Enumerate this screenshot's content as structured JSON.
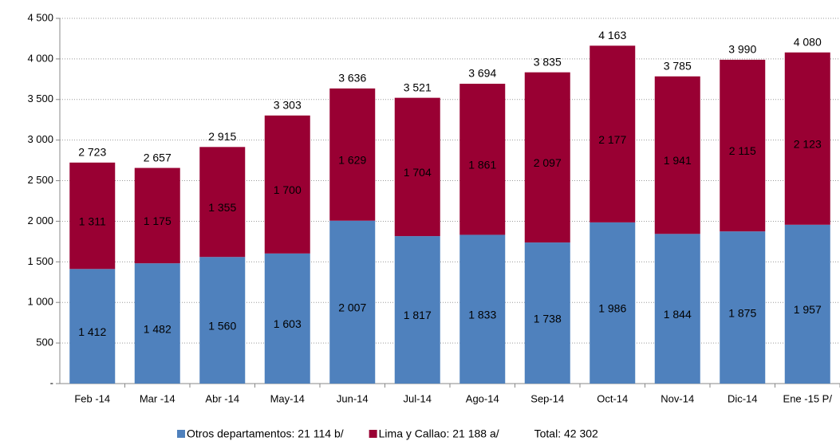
{
  "chart_data": {
    "type": "stacked_bar",
    "categories": [
      "Feb -14",
      "Mar -14",
      "Abr -14",
      "May-14",
      "Jun-14",
      "Jul-14",
      "Ago-14",
      "Sep-14",
      "Oct-14",
      "Nov-14",
      "Dic-14",
      "Ene -15 P/"
    ],
    "series": [
      {
        "name": "Otros departamentos: 21 114 b/",
        "color": "#4f81bd",
        "values": [
          1412,
          1482,
          1560,
          1603,
          2007,
          1817,
          1833,
          1738,
          1986,
          1844,
          1875,
          1957
        ],
        "value_labels": [
          "1 412",
          "1 482",
          "1 560",
          "1 603",
          "2 007",
          "1 817",
          "1 833",
          "1 738",
          "1 986",
          "1 844",
          "1 875",
          "1 957"
        ]
      },
      {
        "name": "Lima y Callao: 21 188 a/",
        "color": "#990033",
        "values": [
          1311,
          1175,
          1355,
          1700,
          1629,
          1704,
          1861,
          2097,
          2177,
          1941,
          2115,
          2123
        ],
        "value_labels": [
          "1 311",
          "1 175",
          "1 355",
          "1 700",
          "1 629",
          "1 704",
          "1 861",
          "2 097",
          "2 177",
          "1 941",
          "2 115",
          "2 123"
        ]
      }
    ],
    "totals": [
      2723,
      2657,
      2915,
      3303,
      3636,
      3521,
      3694,
      3835,
      4163,
      3785,
      3990,
      4080
    ],
    "total_labels": [
      "2 723",
      "2 657",
      "2 915",
      "3 303",
      "3 636",
      "3 521",
      "3 694",
      "3 835",
      "4 163",
      "3 785",
      "3 990",
      "4 080"
    ],
    "legend_note": "Total: 42 302",
    "ylim": [
      0,
      4500
    ],
    "yticks": [
      {
        "value": 0,
        "label": "-"
      },
      500,
      {
        "value": 1000,
        "label": "1 000"
      },
      {
        "value": 1500,
        "label": "1 500"
      },
      {
        "value": 2000,
        "label": "2 000"
      },
      {
        "value": 2500,
        "label": "2 500"
      },
      {
        "value": 3000,
        "label": "3 000"
      },
      {
        "value": 3500,
        "label": "3 500"
      },
      {
        "value": 4000,
        "label": "4 000"
      },
      {
        "value": 4500,
        "label": "4 500"
      }
    ],
    "grid": true
  }
}
